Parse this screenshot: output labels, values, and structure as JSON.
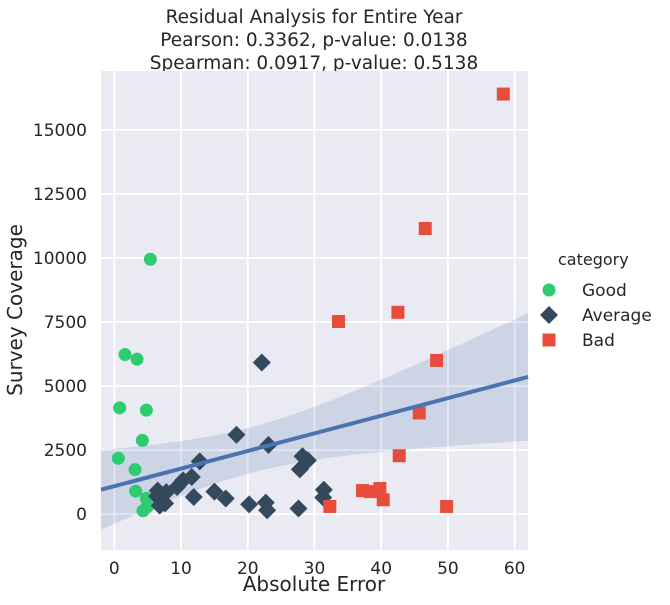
{
  "chart_data": {
    "type": "scatter",
    "title": [
      "Residual Analysis for Entire Year",
      "Pearson: 0.3362, p-value: 0.0138",
      "Spearman: 0.0917, p-value: 0.5138"
    ],
    "xlabel": "Absolute Error",
    "ylabel": "Survey Coverage",
    "xlim": [
      -2,
      62
    ],
    "ylim": [
      -1400,
      17300
    ],
    "xticks": [
      0,
      10,
      20,
      30,
      40,
      50,
      60
    ],
    "yticks": [
      0,
      2500,
      5000,
      7500,
      10000,
      12500,
      15000
    ],
    "grid": true,
    "legend": {
      "title": "category",
      "placement": "right"
    },
    "series": [
      {
        "name": "Good",
        "marker": "circle",
        "color": "#2ecc71",
        "points": [
          [
            5.4,
            9950
          ],
          [
            1.6,
            6230
          ],
          [
            3.4,
            6050
          ],
          [
            0.8,
            4150
          ],
          [
            4.8,
            4060
          ],
          [
            4.2,
            2880
          ],
          [
            0.6,
            2180
          ],
          [
            3.1,
            1740
          ],
          [
            3.2,
            900
          ],
          [
            4.8,
            620
          ],
          [
            5.3,
            400
          ],
          [
            4.9,
            280
          ],
          [
            4.3,
            130
          ]
        ]
      },
      {
        "name": "Average",
        "marker": "diamond",
        "color": "#34495e",
        "points": [
          [
            22.1,
            5920
          ],
          [
            18.3,
            3100
          ],
          [
            23.1,
            2700
          ],
          [
            12.8,
            2060
          ],
          [
            28.2,
            2260
          ],
          [
            29.0,
            2100
          ],
          [
            27.8,
            1750
          ],
          [
            11.6,
            1450
          ],
          [
            10.3,
            1320
          ],
          [
            9.4,
            1060
          ],
          [
            7.8,
            860
          ],
          [
            6.5,
            920
          ],
          [
            15.0,
            880
          ],
          [
            31.4,
            950
          ],
          [
            6.4,
            700
          ],
          [
            11.9,
            670
          ],
          [
            16.7,
            610
          ],
          [
            31.3,
            650
          ],
          [
            7.6,
            420
          ],
          [
            6.8,
            330
          ],
          [
            20.2,
            380
          ],
          [
            22.7,
            450
          ],
          [
            22.9,
            150
          ],
          [
            27.6,
            220
          ]
        ]
      },
      {
        "name": "Bad",
        "marker": "square",
        "color": "#e74c3c",
        "points": [
          [
            58.3,
            16400
          ],
          [
            46.6,
            11150
          ],
          [
            42.5,
            7880
          ],
          [
            33.6,
            7520
          ],
          [
            48.3,
            6000
          ],
          [
            45.7,
            3950
          ],
          [
            42.7,
            2280
          ],
          [
            37.2,
            920
          ],
          [
            38.4,
            880
          ],
          [
            39.8,
            1000
          ],
          [
            40.3,
            560
          ],
          [
            32.3,
            300
          ],
          [
            49.8,
            300
          ]
        ]
      }
    ],
    "regression": {
      "slope": 68.8,
      "intercept": 1090,
      "color": "#4c72b0",
      "ci_color": "#4c72b0"
    }
  }
}
